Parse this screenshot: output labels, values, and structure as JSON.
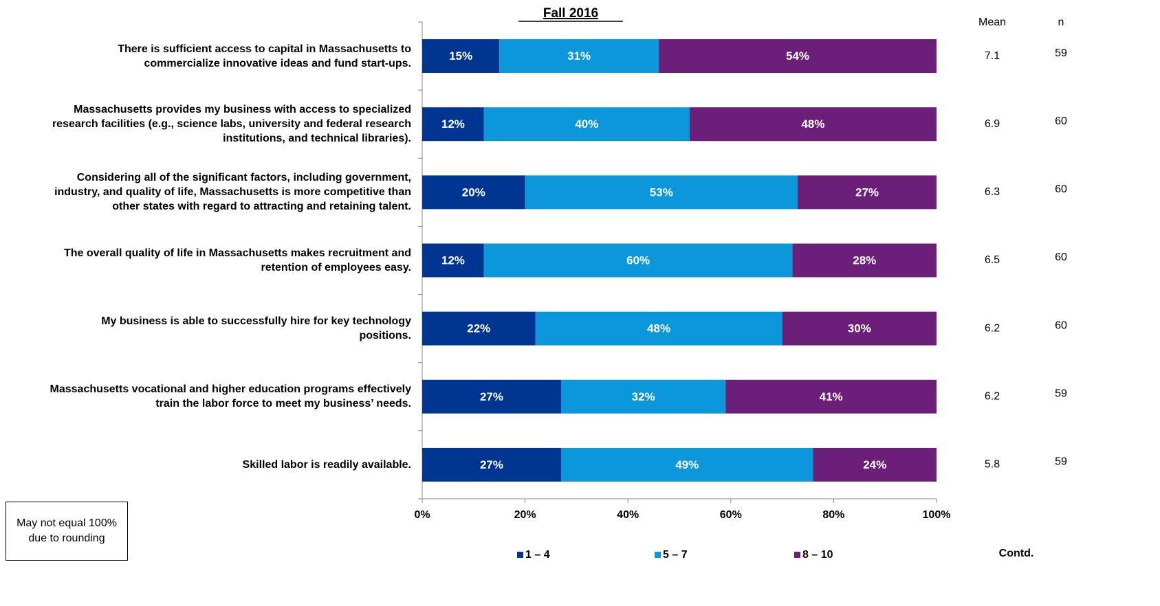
{
  "chart_data": {
    "type": "bar",
    "orientation": "horizontal",
    "stacked": true,
    "title": "Fall 2016",
    "categories": [
      "There is sufficient access to capital in Massachusetts to commercialize innovative ideas and fund start-ups.",
      "Massachusetts provides my business with access to specialized research facilities (e.g., science labs, university and federal research institutions, and technical libraries).",
      "Considering all of the significant factors, including government, industry, and quality of life, Massachusetts is more competitive than other states with regard to attracting and retaining talent.",
      "The overall quality of life in Massachusetts makes recruitment and retention of employees easy.",
      "My business is able to successfully hire for key technology positions.",
      "Massachusetts vocational and higher education programs effectively train the labor force to meet my business’ needs.",
      "Skilled labor is readily available."
    ],
    "series": [
      {
        "name": "1 – 4",
        "color": "#003591",
        "values": [
          15,
          12,
          20,
          12,
          22,
          27,
          27
        ],
        "value_labels": [
          "15%",
          "12%",
          "20%",
          "12%",
          "22%",
          "27%",
          "27%"
        ]
      },
      {
        "name": "5 – 7",
        "color": "#0b97d9",
        "values": [
          31,
          40,
          53,
          60,
          48,
          32,
          49
        ],
        "value_labels": [
          "31%",
          "40%",
          "53%",
          "60%",
          "48%",
          "32%",
          "49%"
        ]
      },
      {
        "name": "8 – 10",
        "color": "#6c1f78",
        "values": [
          54,
          48,
          27,
          28,
          30,
          41,
          24
        ],
        "value_labels": [
          "54%",
          "48%",
          "27%",
          "28%",
          "30%",
          "41%",
          "24%"
        ]
      }
    ],
    "xlim": [
      0,
      100
    ],
    "xticks": [
      {
        "value": 0,
        "label": "0%"
      },
      {
        "value": 20,
        "label": "20%"
      },
      {
        "value": 40,
        "label": "40%"
      },
      {
        "value": 60,
        "label": "60%"
      },
      {
        "value": 80,
        "label": "80%"
      },
      {
        "value": 100,
        "label": "100%"
      }
    ],
    "legend": "bottom",
    "mean": {
      "label": "Mean",
      "values": [
        7.1,
        6.9,
        6.3,
        6.5,
        6.2,
        6.2,
        5.8
      ]
    },
    "n": {
      "label": "n",
      "values": [
        59,
        60,
        60,
        60,
        60,
        59,
        59
      ]
    },
    "note": "May not equal 100% due to rounding",
    "footer": "Contd."
  }
}
